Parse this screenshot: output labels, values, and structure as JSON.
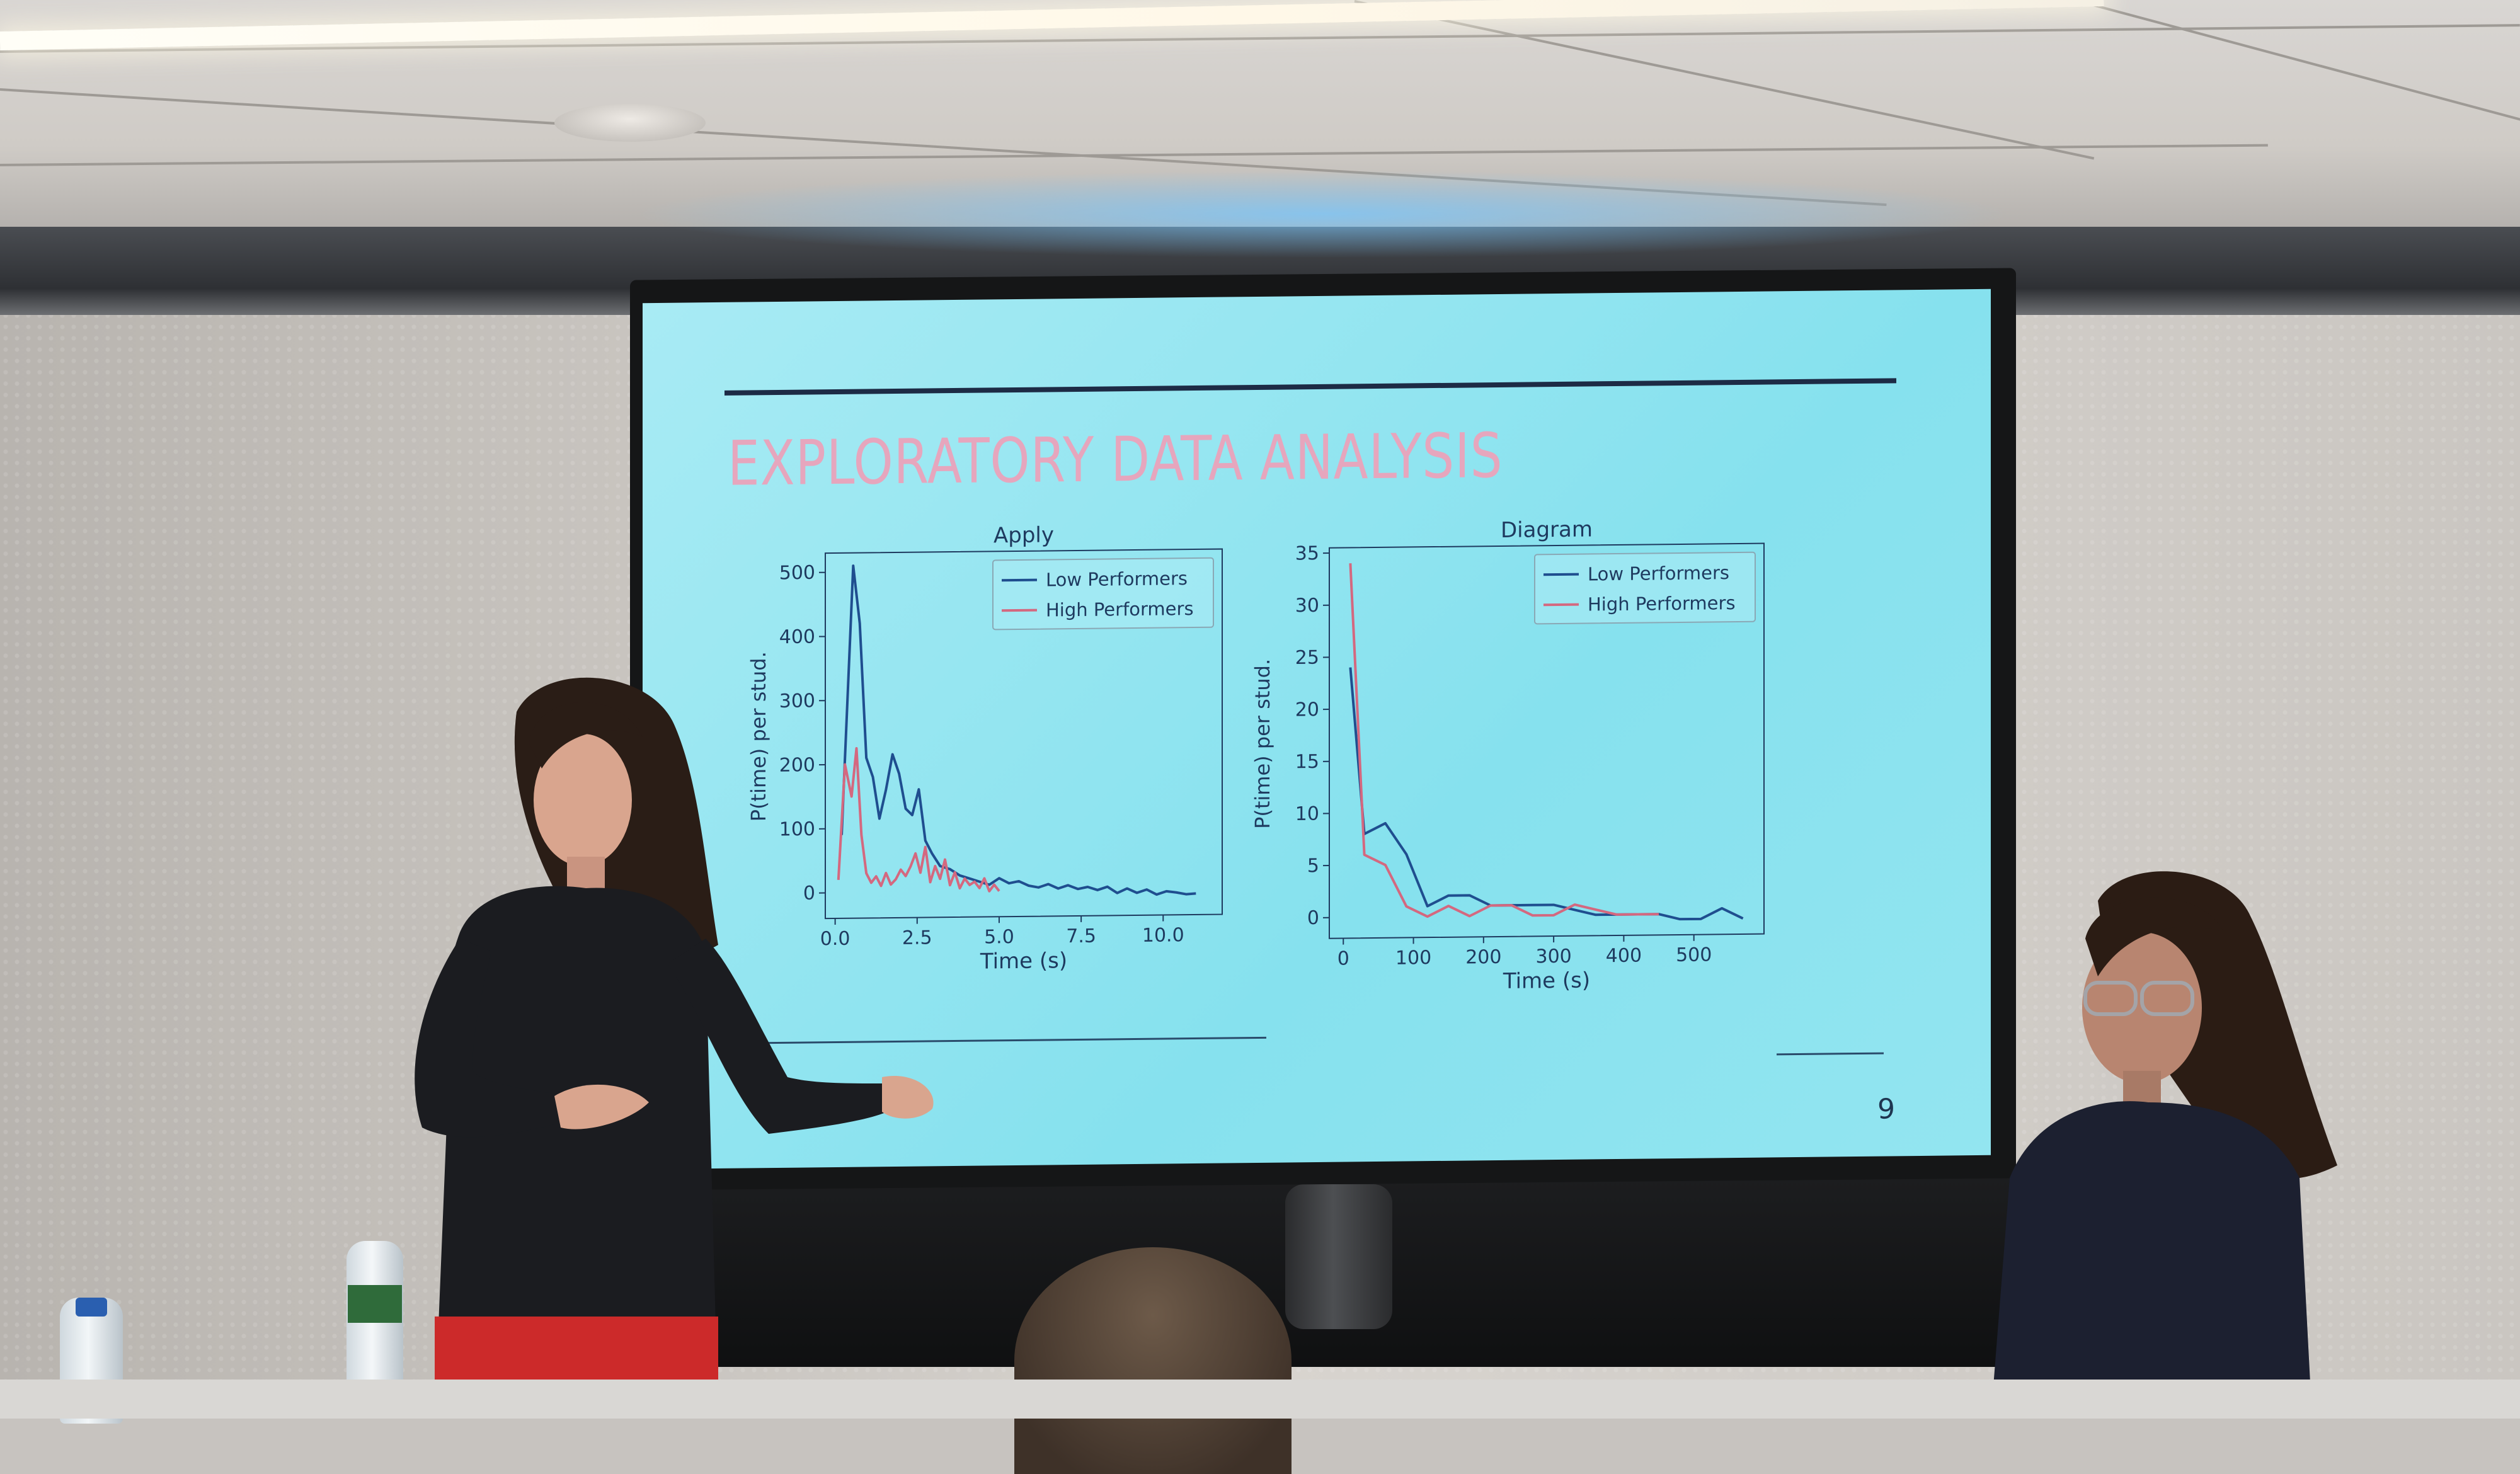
{
  "slide": {
    "title": "EXPLORATORY DATA ANALYSIS",
    "page_number": "9"
  },
  "colors": {
    "low_performers": "#1f4e8f",
    "high_performers": "#d4687f",
    "slide_background": "#93e5f0",
    "title": "#e6a6bd"
  },
  "chart_data": [
    {
      "type": "line",
      "title": "Apply",
      "xlabel": "Time (s)",
      "ylabel": "P(time) per stud.",
      "xlim": [
        -0.3,
        11.8
      ],
      "ylim": [
        -40,
        530
      ],
      "x_ticks": [
        "0.0",
        "2.5",
        "5.0",
        "7.5",
        "10.0"
      ],
      "x_tick_values": [
        0,
        2.5,
        5,
        7.5,
        10
      ],
      "y_ticks": [
        "0",
        "100",
        "200",
        "300",
        "400",
        "500"
      ],
      "y_tick_values": [
        0,
        100,
        200,
        300,
        400,
        500
      ],
      "legend_position": "top-right",
      "series": [
        {
          "name": "Low Performers",
          "x": [
            0.2,
            0.55,
            0.75,
            0.95,
            1.15,
            1.35,
            1.55,
            1.75,
            1.95,
            2.15,
            2.35,
            2.55,
            2.75,
            2.95,
            3.2,
            3.5,
            3.8,
            4.1,
            4.4,
            4.7,
            5.0,
            5.3,
            5.6,
            5.9,
            6.2,
            6.5,
            6.8,
            7.1,
            7.4,
            7.7,
            8.0,
            8.3,
            8.6,
            8.9,
            9.2,
            9.5,
            9.8,
            10.1,
            10.4,
            10.7,
            11.0
          ],
          "values": [
            90,
            510,
            420,
            210,
            180,
            115,
            160,
            215,
            185,
            130,
            120,
            160,
            80,
            60,
            40,
            35,
            25,
            20,
            15,
            10,
            20,
            12,
            15,
            8,
            5,
            10,
            3,
            8,
            2,
            5,
            0,
            5,
            -5,
            2,
            -5,
            0,
            -8,
            -3,
            -5,
            -8,
            -7
          ]
        },
        {
          "name": "High Performers",
          "x": [
            0.1,
            0.3,
            0.5,
            0.65,
            0.8,
            0.95,
            1.1,
            1.25,
            1.4,
            1.55,
            1.7,
            1.85,
            2.0,
            2.15,
            2.3,
            2.45,
            2.6,
            2.75,
            2.9,
            3.05,
            3.2,
            3.35,
            3.5,
            3.65,
            3.8,
            3.95,
            4.1,
            4.25,
            4.4,
            4.55,
            4.7,
            4.85,
            5.0
          ],
          "values": [
            20,
            200,
            150,
            225,
            90,
            30,
            15,
            25,
            10,
            30,
            12,
            20,
            35,
            25,
            40,
            60,
            30,
            70,
            15,
            40,
            20,
            50,
            10,
            30,
            5,
            20,
            10,
            15,
            5,
            20,
            0,
            10,
            0
          ]
        }
      ]
    },
    {
      "type": "line",
      "title": "Diagram",
      "xlabel": "Time (s)",
      "ylabel": "P(time) per stud.",
      "xlim": [
        -20,
        600
      ],
      "ylim": [
        -2,
        35.5
      ],
      "x_ticks": [
        "0",
        "100",
        "200",
        "300",
        "400",
        "500"
      ],
      "x_tick_values": [
        0,
        100,
        200,
        300,
        400,
        500
      ],
      "y_ticks": [
        "0",
        "5",
        "10",
        "15",
        "20",
        "25",
        "30",
        "35"
      ],
      "y_tick_values": [
        0,
        5,
        10,
        15,
        20,
        25,
        30,
        35
      ],
      "legend_position": "top-right",
      "series": [
        {
          "name": "Low Performers",
          "x": [
            10,
            30,
            60,
            90,
            120,
            150,
            180,
            210,
            240,
            270,
            300,
            330,
            360,
            390,
            420,
            450,
            480,
            510,
            540,
            570
          ],
          "values": [
            24,
            8,
            9,
            6,
            1,
            2,
            2,
            1,
            1,
            1,
            1,
            0.5,
            0,
            0,
            0,
            0,
            -0.5,
            -0.5,
            0.5,
            -0.5
          ]
        },
        {
          "name": "High Performers",
          "x": [
            10,
            30,
            60,
            90,
            120,
            150,
            180,
            210,
            240,
            270,
            300,
            330,
            360,
            390,
            420,
            450
          ],
          "values": [
            34,
            6,
            5,
            1,
            0,
            1,
            0,
            1,
            1,
            0,
            0,
            1,
            0.5,
            0,
            0,
            0
          ]
        }
      ]
    }
  ]
}
